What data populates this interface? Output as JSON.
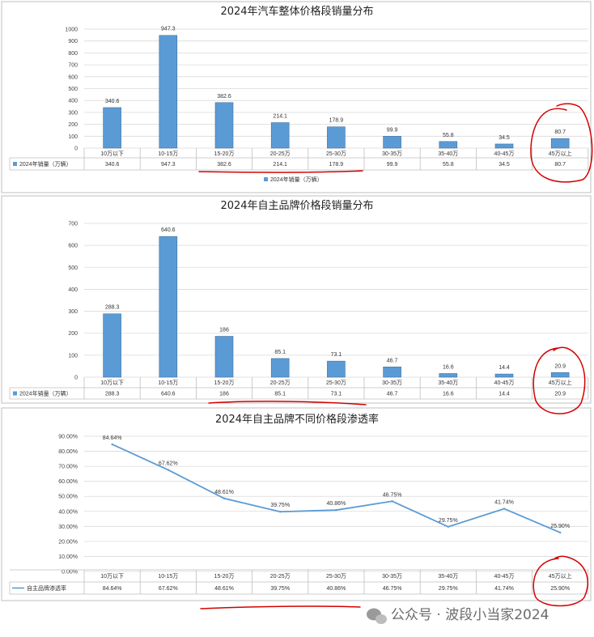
{
  "charts_meta": {
    "table_row_label_1": "2024年销量（万辆）",
    "legend_label_1": "2024年销量（万辆）",
    "table_row_label_2": "2024年销量（万辆）",
    "table_row_label_3": "自主品牌渗透率"
  },
  "watermark": "公众号 · 波段小当家2024",
  "colors": {
    "bar": "#5b9bd5",
    "bar_stroke": "#41719c",
    "line": "#5b9bd5",
    "annotation": "#d40000",
    "grid": "#d9d9d9"
  },
  "chart_data": [
    {
      "type": "bar",
      "title": "2024年汽车整体价格段销量分布",
      "categories": [
        "10万以下",
        "10-15万",
        "15-20万",
        "20-25万",
        "25-30万",
        "30-35万",
        "35-40万",
        "40-45万",
        "45万以上"
      ],
      "series": [
        {
          "name": "2024年销量（万辆）",
          "values": [
            340.6,
            947.3,
            382.6,
            214.1,
            178.9,
            99.9,
            55.8,
            34.5,
            80.7
          ]
        }
      ],
      "value_labels": [
        "340.6",
        "947.3",
        "382.6",
        "214.1",
        "178.9",
        "99.9",
        "55.8",
        "34.5",
        "80.7"
      ],
      "yticks": [
        "0",
        "100",
        "200",
        "300",
        "400",
        "500",
        "600",
        "700",
        "800",
        "900",
        "1000"
      ],
      "ylim": [
        0,
        1000
      ],
      "grid": true,
      "legend": "bottom"
    },
    {
      "type": "bar",
      "title": "2024年自主品牌价格段销量分布",
      "categories": [
        "10万以下",
        "10-15万",
        "15-20万",
        "20-25万",
        "25-30万",
        "30-35万",
        "35-40万",
        "40-45万",
        "45万以上"
      ],
      "series": [
        {
          "name": "2024年销量（万辆）",
          "values": [
            288.3,
            640.6,
            186,
            85.1,
            73.1,
            46.7,
            16.6,
            14.4,
            20.9
          ]
        }
      ],
      "value_labels": [
        "288.3",
        "640.6",
        "186",
        "85.1",
        "73.1",
        "46.7",
        "16.6",
        "14.4",
        "20.9"
      ],
      "yticks": [
        "0",
        "100",
        "200",
        "300",
        "400",
        "500",
        "600",
        "700"
      ],
      "ylim": [
        0,
        700
      ],
      "grid": true
    },
    {
      "type": "line",
      "title": "2024年自主品牌不同价格段渗透率",
      "categories": [
        "10万以下",
        "10-15万",
        "15-20万",
        "20-25万",
        "25-30万",
        "30-35万",
        "35-40万",
        "40-45万",
        "45万以上"
      ],
      "series": [
        {
          "name": "自主品牌渗透率",
          "values": [
            84.64,
            67.62,
            48.61,
            39.75,
            40.86,
            46.75,
            29.75,
            41.74,
            25.9
          ]
        }
      ],
      "value_labels": [
        "84.64%",
        "67.62%",
        "48.61%",
        "39.75%",
        "40.86%",
        "46.75%",
        "29.75%",
        "41.74%",
        "25.90%"
      ],
      "yticks": [
        "0.00%",
        "10.00%",
        "20.00%",
        "30.00%",
        "40.00%",
        "50.00%",
        "60.00%",
        "70.00%",
        "80.00%",
        "90.00%"
      ],
      "ylim": [
        0,
        90
      ],
      "grid": true
    }
  ]
}
